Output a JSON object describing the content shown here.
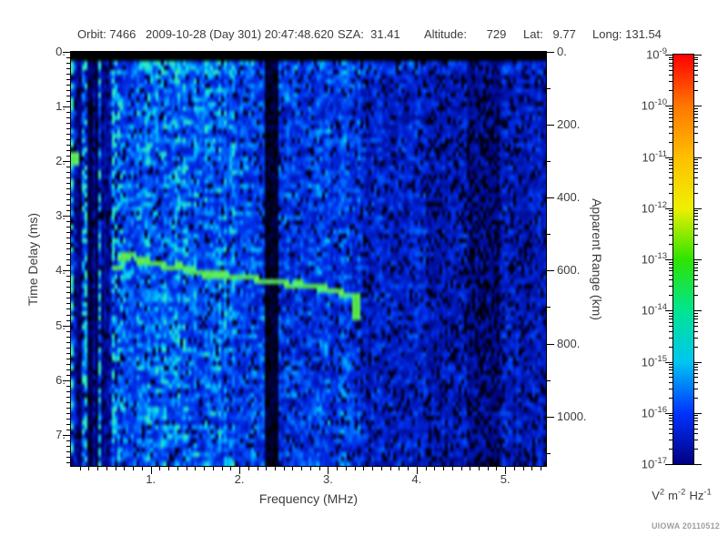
{
  "header": {
    "orbit": "Orbit: 7466",
    "datetime": "2009-10-28 (Day 301) 20:47:48.620",
    "sza": "SZA:  31.41",
    "altitude": "Altitude:      729",
    "lat": "Lat:   9.77",
    "long": "Long: 131.54"
  },
  "credit": "UIOWA 20110512",
  "chart_data": {
    "type": "heatmap",
    "subtype": "radar-sounder-ionogram-spectrogram",
    "xlabel": "Frequency (MHz)",
    "ylabel": "Time Delay (ms)",
    "ylabel_right": "Apparent Range (km)",
    "x_range": [
      0.1,
      5.46
    ],
    "x_major_ticks": [
      1,
      2,
      3,
      4,
      5
    ],
    "x_minor_step": 0.1,
    "y_range": [
      0,
      7.57
    ],
    "y_major_ticks": [
      0,
      1,
      2,
      3,
      4,
      5,
      6,
      7
    ],
    "y_minor_step": 0.1,
    "right_axis": {
      "ticks": [
        0,
        200,
        400,
        600,
        800,
        1000
      ],
      "minor_step": 100,
      "km_per_ms": 150,
      "max_km": 1100
    },
    "colorbar": {
      "scale": "log",
      "top_exp": -9,
      "bottom_exp": -17,
      "tick_exps": [
        -9,
        -10,
        -11,
        -12,
        -13,
        -14,
        -15,
        -16,
        -17
      ],
      "unit_parts": [
        {
          "base": "V",
          "exp": "2"
        },
        {
          "base": "m",
          "exp": "-2"
        },
        {
          "base": "Hz",
          "exp": "-1"
        }
      ],
      "gradient": [
        {
          "at": 0.0,
          "color": "#FF0000"
        },
        {
          "at": 0.125,
          "color": "#FF7700"
        },
        {
          "at": 0.25,
          "color": "#FFBE00"
        },
        {
          "at": 0.375,
          "color": "#EEF000"
        },
        {
          "at": 0.5,
          "color": "#2EE400"
        },
        {
          "at": 0.625,
          "color": "#00E592"
        },
        {
          "at": 0.75,
          "color": "#00C6F0"
        },
        {
          "at": 0.875,
          "color": "#0033FF"
        },
        {
          "at": 1.0,
          "color": "#000082"
        }
      ]
    },
    "features": {
      "blank_top_ms": 0.2,
      "echo_trace": {
        "points_mhz_ms": [
          [
            0.6,
            3.93
          ],
          [
            0.64,
            3.76
          ],
          [
            0.68,
            3.64
          ],
          [
            0.73,
            3.74
          ],
          [
            0.79,
            3.68
          ],
          [
            0.86,
            3.8
          ],
          [
            0.93,
            3.73
          ],
          [
            1.0,
            3.86
          ],
          [
            1.08,
            3.8
          ],
          [
            1.17,
            3.92
          ],
          [
            1.3,
            3.88
          ],
          [
            1.45,
            3.97
          ],
          [
            1.65,
            4.02
          ],
          [
            1.9,
            4.07
          ],
          [
            2.15,
            4.12
          ],
          [
            2.4,
            4.17
          ],
          [
            2.65,
            4.22
          ],
          [
            2.9,
            4.28
          ],
          [
            3.1,
            4.33
          ],
          [
            3.22,
            4.38
          ]
        ],
        "terminus_mhz": 3.3,
        "terminus_span_ms": [
          4.38,
          4.85
        ]
      },
      "local_plasma_blob_mhz_ms": [
        0.13,
        1.9
      ],
      "dark_columns_mhz": [
        [
          0.3,
          0.4
        ],
        [
          0.44,
          0.52
        ]
      ],
      "bright_columns_mhz": [
        0.12,
        0.27,
        0.58,
        1.28,
        1.5
      ],
      "background_profile": [
        {
          "f0": 0.1,
          "f1": 0.62,
          "gain": 1.0,
          "drop": 0.1,
          "stripes": true
        },
        {
          "f0": 0.62,
          "f1": 1.95,
          "gain": 1.12,
          "drop": 0.08
        },
        {
          "f0": 1.95,
          "f1": 2.28,
          "gain": 0.92,
          "drop": 0.1
        },
        {
          "f0": 2.28,
          "f1": 2.43,
          "gain": 0.07,
          "drop": 0.3
        },
        {
          "f0": 2.43,
          "f1": 3.35,
          "gain": 0.88,
          "drop": 0.1
        },
        {
          "f0": 3.35,
          "f1": 4.1,
          "gain": 0.62,
          "drop": 0.15
        },
        {
          "f0": 4.1,
          "f1": 4.58,
          "gain": 0.5,
          "drop": 0.22
        },
        {
          "f0": 4.58,
          "f1": 4.95,
          "gain": 0.34,
          "drop": 0.32
        },
        {
          "f0": 4.95,
          "f1": 5.46,
          "gain": 0.55,
          "drop": 0.18
        }
      ]
    }
  }
}
